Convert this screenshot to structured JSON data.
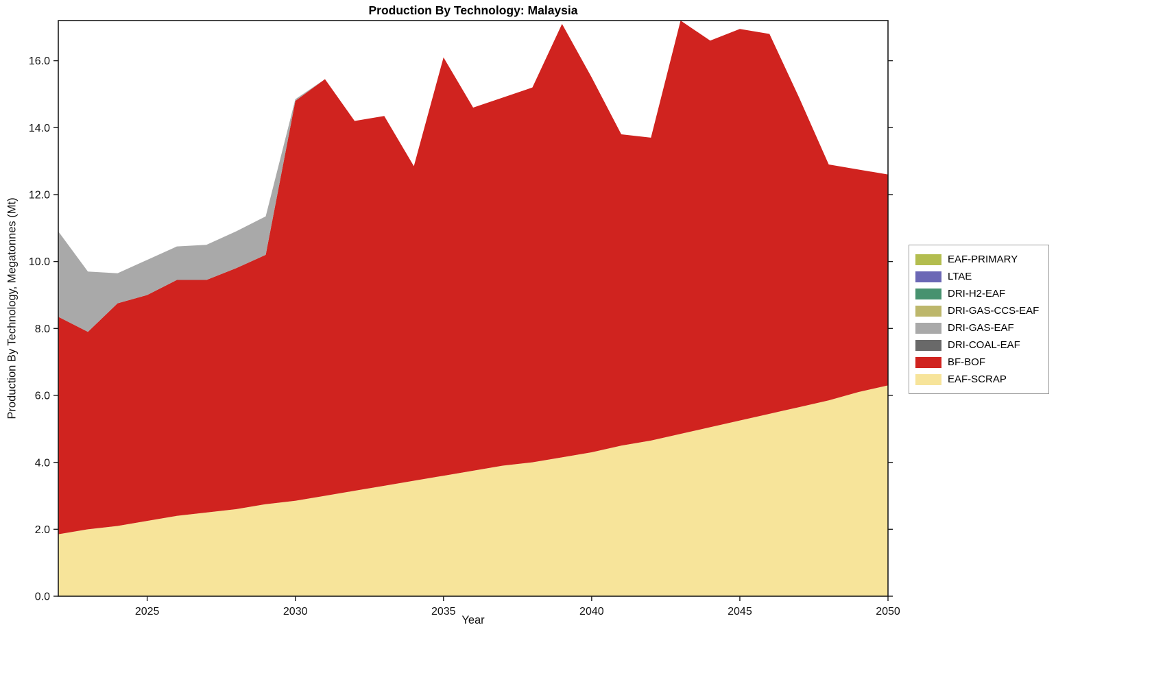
{
  "title": "Production By Technology: Malaysia",
  "xlabel": "Year",
  "ylabel": "Production By Technology, Megatonnes (Mt)",
  "colors": {
    "axis": "#1a1a1a",
    "tick_label": "#111111"
  },
  "chart_data": {
    "type": "area",
    "stacked": true,
    "title": "Production By Technology: Malaysia",
    "xlabel": "Year",
    "ylabel": "Production By Technology, Megatonnes (Mt)",
    "xlim": [
      2022,
      2050
    ],
    "ylim": [
      0,
      17.2
    ],
    "grid": false,
    "legend_position": "right-outside",
    "x": [
      2022,
      2023,
      2024,
      2025,
      2026,
      2027,
      2028,
      2029,
      2030,
      2031,
      2032,
      2033,
      2034,
      2035,
      2036,
      2037,
      2038,
      2039,
      2040,
      2041,
      2042,
      2043,
      2044,
      2045,
      2046,
      2047,
      2048,
      2049,
      2050
    ],
    "xticks": {
      "values": [
        2025,
        2030,
        2035,
        2040,
        2045,
        2050
      ],
      "labels": [
        "2025",
        "2030",
        "2035",
        "2040",
        "2045",
        "2050"
      ]
    },
    "yticks": {
      "values": [
        0,
        2,
        4,
        6,
        8,
        10,
        12,
        14,
        16
      ],
      "labels": [
        "0.0",
        "2.0",
        "4.0",
        "6.0",
        "8.0",
        "10.0",
        "12.0",
        "14.0",
        "16.0"
      ]
    },
    "series": [
      {
        "name": "EAF-SCRAP",
        "color": "#f7e49a",
        "values": [
          1.85,
          2.0,
          2.1,
          2.25,
          2.4,
          2.5,
          2.6,
          2.75,
          2.85,
          3.0,
          3.15,
          3.3,
          3.45,
          3.6,
          3.75,
          3.9,
          4.0,
          4.15,
          4.3,
          4.5,
          4.65,
          4.85,
          5.05,
          5.25,
          5.45,
          5.65,
          5.85,
          6.1,
          6.3
        ]
      },
      {
        "name": "BF-BOF",
        "color": "#d0231f",
        "values": [
          6.5,
          5.9,
          6.65,
          6.75,
          7.05,
          6.95,
          7.2,
          7.45,
          11.95,
          12.45,
          11.05,
          11.05,
          9.4,
          12.5,
          10.85,
          11.0,
          11.2,
          12.95,
          11.2,
          9.3,
          9.05,
          12.35,
          11.55,
          11.7,
          11.35,
          9.25,
          7.05,
          6.65,
          6.3
        ]
      },
      {
        "name": "DRI-COAL-EAF",
        "color": "#696969",
        "values": [
          0,
          0,
          0,
          0,
          0,
          0,
          0,
          0,
          0,
          0,
          0,
          0,
          0,
          0,
          0,
          0,
          0,
          0,
          0,
          0,
          0,
          0,
          0,
          0,
          0,
          0,
          0,
          0,
          0
        ]
      },
      {
        "name": "DRI-GAS-EAF",
        "color": "#a9a9a9",
        "values": [
          2.55,
          1.8,
          0.9,
          1.05,
          1.0,
          1.05,
          1.1,
          1.15,
          0.05,
          0,
          0,
          0,
          0,
          0,
          0,
          0,
          0,
          0,
          0,
          0,
          0,
          0,
          0,
          0,
          0,
          0,
          0,
          0,
          0
        ]
      },
      {
        "name": "DRI-GAS-CCS-EAF",
        "color": "#bdb76b",
        "values": [
          0,
          0,
          0,
          0,
          0,
          0,
          0,
          0,
          0,
          0,
          0,
          0,
          0,
          0,
          0,
          0,
          0,
          0,
          0,
          0,
          0,
          0,
          0,
          0,
          0,
          0,
          0,
          0,
          0
        ]
      },
      {
        "name": "DRI-H2-EAF",
        "color": "#47926f",
        "values": [
          0,
          0,
          0,
          0,
          0,
          0,
          0,
          0,
          0,
          0,
          0,
          0,
          0,
          0,
          0,
          0,
          0,
          0,
          0,
          0,
          0,
          0,
          0,
          0,
          0,
          0,
          0,
          0,
          0
        ]
      },
      {
        "name": "LTAE",
        "color": "#6b67b5",
        "values": [
          0,
          0,
          0,
          0,
          0,
          0,
          0,
          0,
          0,
          0,
          0,
          0,
          0,
          0,
          0,
          0,
          0,
          0,
          0,
          0,
          0,
          0,
          0,
          0,
          0,
          0,
          0,
          0,
          0
        ]
      },
      {
        "name": "EAF-PRIMARY",
        "color": "#b3bd4f",
        "values": [
          0,
          0,
          0,
          0,
          0,
          0,
          0,
          0,
          0,
          0,
          0,
          0,
          0,
          0,
          0,
          0,
          0,
          0,
          0,
          0,
          0,
          0,
          0,
          0,
          0,
          0,
          0,
          0,
          0
        ]
      }
    ],
    "legend_entries": [
      "EAF-PRIMARY",
      "LTAE",
      "DRI-H2-EAF",
      "DRI-GAS-CCS-EAF",
      "DRI-GAS-EAF",
      "DRI-COAL-EAF",
      "BF-BOF",
      "EAF-SCRAP"
    ]
  }
}
